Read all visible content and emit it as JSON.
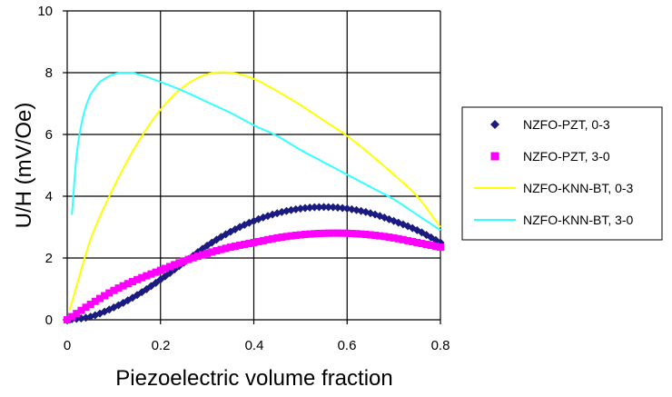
{
  "chart_data": {
    "type": "scatter",
    "title": "",
    "xlabel": "Piezoelectric volume fraction",
    "ylabel": "U/H (mV/Oe)",
    "xlim": [
      0,
      0.8
    ],
    "ylim": [
      0,
      10
    ],
    "xticks": [
      "0",
      "0.2",
      "0.4",
      "0.6",
      "0.8"
    ],
    "yticks": [
      "0",
      "2",
      "4",
      "6",
      "8",
      "10"
    ],
    "grid": true,
    "legend_position": "right",
    "series": [
      {
        "name": "NZFO-PZT, 0-3",
        "style": "markers",
        "marker": "diamond",
        "color": "#1a1a80",
        "x": [
          0.0,
          0.05,
          0.1,
          0.15,
          0.2,
          0.25,
          0.3,
          0.35,
          0.4,
          0.45,
          0.5,
          0.55,
          0.6,
          0.65,
          0.7,
          0.75,
          0.8
        ],
        "y": [
          0.0,
          0.1,
          0.4,
          0.8,
          1.3,
          1.85,
          2.4,
          2.85,
          3.2,
          3.45,
          3.6,
          3.65,
          3.6,
          3.45,
          3.2,
          2.9,
          2.5
        ]
      },
      {
        "name": "NZFO-PZT, 3-0",
        "style": "markers",
        "marker": "square",
        "color": "#ff00ff",
        "x": [
          0.0,
          0.05,
          0.1,
          0.15,
          0.2,
          0.25,
          0.3,
          0.35,
          0.4,
          0.45,
          0.5,
          0.55,
          0.6,
          0.65,
          0.7,
          0.75,
          0.8
        ],
        "y": [
          0.0,
          0.5,
          0.95,
          1.3,
          1.6,
          1.9,
          2.15,
          2.35,
          2.5,
          2.65,
          2.75,
          2.8,
          2.8,
          2.75,
          2.65,
          2.5,
          2.35
        ]
      },
      {
        "name": "NZFO-KNN-BT, 0-3",
        "style": "line",
        "color": "#ffff00",
        "x": [
          0.005,
          0.05,
          0.1,
          0.15,
          0.2,
          0.25,
          0.3,
          0.35,
          0.4,
          0.45,
          0.5,
          0.55,
          0.6,
          0.65,
          0.7,
          0.75,
          0.8
        ],
        "y": [
          0.3,
          2.6,
          4.3,
          5.7,
          6.8,
          7.55,
          7.95,
          8.0,
          7.8,
          7.4,
          6.95,
          6.45,
          5.95,
          5.35,
          4.7,
          4.0,
          3.0
        ]
      },
      {
        "name": "NZFO-KNN-BT, 3-0",
        "style": "line",
        "color": "#33ffff",
        "x": [
          0.01,
          0.02,
          0.03,
          0.04,
          0.05,
          0.07,
          0.1,
          0.13,
          0.15,
          0.2,
          0.25,
          0.3,
          0.35,
          0.4,
          0.45,
          0.5,
          0.55,
          0.6,
          0.65,
          0.7,
          0.75,
          0.8
        ],
        "y": [
          3.4,
          5.3,
          6.3,
          6.9,
          7.3,
          7.7,
          7.95,
          8.0,
          7.95,
          7.7,
          7.4,
          7.05,
          6.7,
          6.3,
          5.95,
          5.5,
          5.1,
          4.7,
          4.3,
          3.9,
          3.4,
          2.9
        ]
      }
    ]
  }
}
